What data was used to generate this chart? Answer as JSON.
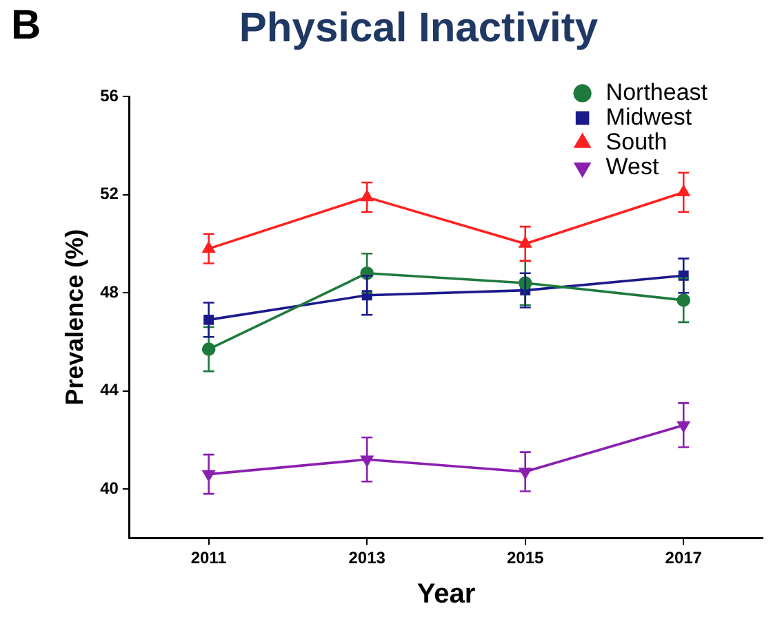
{
  "chart_data": {
    "type": "line",
    "title": "Physical Inactivity",
    "xlabel": "Year",
    "ylabel": "Prevalence (%)",
    "annotations": [
      "B"
    ],
    "x": [
      2011,
      2013,
      2015,
      2017
    ],
    "xlim": [
      2010,
      2018
    ],
    "xticks": [
      2011,
      2013,
      2015,
      2017
    ],
    "ylim": [
      38,
      56
    ],
    "yticks": [
      40,
      44,
      48,
      52,
      56
    ],
    "grid": false,
    "legend": "top right",
    "line_style": "solid",
    "series": [
      {
        "name": "Northeast",
        "color": "#1e7a3c",
        "marker": "circle",
        "values": [
          45.7,
          48.8,
          48.4,
          47.7
        ],
        "errors": [
          0.9,
          0.8,
          0.9,
          0.9
        ]
      },
      {
        "name": "Midwest",
        "color": "#1a1a8c",
        "marker": "square",
        "values": [
          46.9,
          47.9,
          48.1,
          48.7
        ],
        "errors": [
          0.7,
          0.8,
          0.7,
          0.7
        ]
      },
      {
        "name": "South",
        "color": "#ff2020",
        "marker": "triangle",
        "values": [
          49.8,
          51.9,
          50.0,
          52.1
        ],
        "errors": [
          0.6,
          0.6,
          0.7,
          0.8
        ]
      },
      {
        "name": "West",
        "color": "#8a1fb0",
        "marker": "triangle-down",
        "values": [
          40.6,
          41.2,
          40.7,
          42.6
        ],
        "errors": [
          0.8,
          0.9,
          0.8,
          0.9
        ]
      }
    ]
  }
}
